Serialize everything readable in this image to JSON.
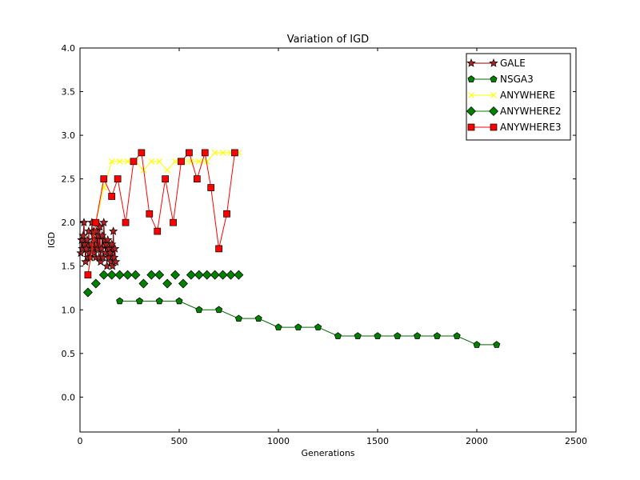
{
  "chart_data": {
    "type": "line",
    "title": "Variation of IGD",
    "xlabel": "Generations",
    "ylabel": "IGD",
    "xlim": [
      0,
      2500
    ],
    "ylim": [
      -0.4,
      4.0
    ],
    "xticks": [
      0,
      500,
      1000,
      1500,
      2000,
      2500
    ],
    "xtick_labels": [
      "0",
      "500",
      "1000",
      "1500",
      "2000",
      "2500"
    ],
    "yticks": [
      0.0,
      0.5,
      1.0,
      1.5,
      2.0,
      2.5,
      3.0,
      3.5,
      4.0
    ],
    "ytick_labels": [
      "0.0",
      "0.5",
      "1.0",
      "1.5",
      "2.0",
      "2.5",
      "3.0",
      "3.5",
      "4.0"
    ],
    "grid": false,
    "legend_position": "top-right",
    "series": [
      {
        "name": "GALE",
        "color": "#8b0000",
        "marker": "star",
        "marker_color": "#b22222",
        "x": [
          4,
          8,
          12,
          16,
          20,
          24,
          28,
          32,
          36,
          40,
          44,
          48,
          52,
          56,
          60,
          64,
          68,
          72,
          76,
          80,
          84,
          88,
          92,
          96,
          100,
          104,
          108,
          112,
          116,
          120,
          124,
          128,
          132,
          136,
          140,
          144,
          148,
          152,
          156,
          160,
          164,
          168,
          172,
          176,
          180
        ],
        "y": [
          1.65,
          1.8,
          1.7,
          1.85,
          2.0,
          1.75,
          1.55,
          1.7,
          1.8,
          1.6,
          1.9,
          1.65,
          1.6,
          1.75,
          2.0,
          1.7,
          1.9,
          1.65,
          1.8,
          1.6,
          1.9,
          1.7,
          1.85,
          1.6,
          1.95,
          1.55,
          1.7,
          1.85,
          1.6,
          2.0,
          1.8,
          1.65,
          1.75,
          1.5,
          1.8,
          1.6,
          1.7,
          1.65,
          1.55,
          1.75,
          1.5,
          1.9,
          1.6,
          1.7,
          1.55
        ]
      },
      {
        "name": "NSGA3",
        "color": "#006400",
        "marker": "pentagon",
        "marker_color": "#008000",
        "x": [
          200,
          300,
          400,
          500,
          600,
          700,
          800,
          900,
          1000,
          1100,
          1200,
          1300,
          1400,
          1500,
          1600,
          1700,
          1800,
          1900,
          2000,
          2100
        ],
        "y": [
          1.1,
          1.1,
          1.1,
          1.1,
          1.0,
          1.0,
          0.9,
          0.9,
          0.8,
          0.8,
          0.8,
          0.7,
          0.7,
          0.7,
          0.7,
          0.7,
          0.7,
          0.7,
          0.6,
          0.6
        ]
      },
      {
        "name": "ANYWHERE",
        "color": "#ffff00",
        "marker": "x",
        "marker_color": "#ffff00",
        "x": [
          40,
          80,
          120,
          160,
          200,
          240,
          280,
          320,
          360,
          400,
          440,
          480,
          520,
          560,
          600,
          640,
          680,
          720,
          760,
          800
        ],
        "y": [
          1.4,
          2.0,
          2.4,
          2.7,
          2.7,
          2.7,
          2.7,
          2.6,
          2.7,
          2.7,
          2.6,
          2.7,
          2.7,
          2.7,
          2.7,
          2.7,
          2.8,
          2.8,
          2.8,
          2.8
        ]
      },
      {
        "name": "ANYWHERE2",
        "color": "#008000",
        "marker": "diamond",
        "marker_color": "#008000",
        "line": false,
        "x": [
          40,
          80,
          120,
          160,
          200,
          240,
          280,
          320,
          360,
          400,
          440,
          480,
          520,
          560,
          600,
          640,
          680,
          720,
          760,
          800
        ],
        "y": [
          1.2,
          1.3,
          1.4,
          1.4,
          1.4,
          1.4,
          1.4,
          1.3,
          1.4,
          1.4,
          1.3,
          1.4,
          1.3,
          1.4,
          1.4,
          1.4,
          1.4,
          1.4,
          1.4,
          1.4
        ]
      },
      {
        "name": "ANYWHERE3",
        "color": "#ff0000",
        "marker": "square",
        "marker_color": "#ff0000",
        "x": [
          40,
          80,
          120,
          160,
          190,
          230,
          270,
          310,
          350,
          390,
          430,
          470,
          510,
          550,
          590,
          630,
          660,
          700,
          740,
          780
        ],
        "y": [
          1.4,
          2.0,
          2.5,
          2.3,
          2.5,
          2.0,
          2.7,
          2.8,
          2.1,
          1.9,
          2.5,
          2.0,
          2.7,
          2.8,
          2.5,
          2.8,
          2.4,
          1.7,
          2.1,
          2.8
        ]
      }
    ]
  }
}
